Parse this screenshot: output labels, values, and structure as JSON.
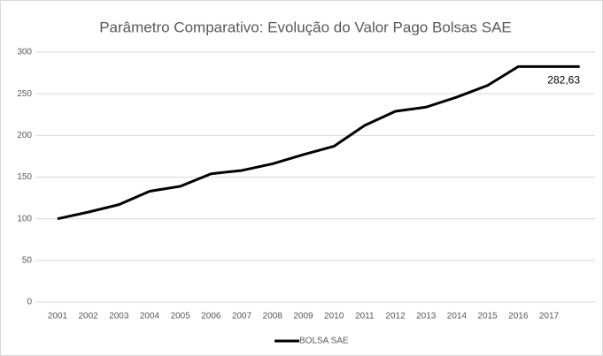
{
  "chart_data": {
    "type": "line",
    "title": "Parâmetro Comparativo: Evolução do Valor Pago Bolsas SAE",
    "categories": [
      "2001",
      "2002",
      "2003",
      "2004",
      "2005",
      "2006",
      "2007",
      "2008",
      "2009",
      "2010",
      "2011",
      "2012",
      "2013",
      "2014",
      "2015",
      "2016",
      "2017",
      null
    ],
    "series": [
      {
        "name": "BOLSA SAE",
        "color": "#000000",
        "values": [
          100,
          108,
          117,
          133,
          139,
          154,
          158,
          166,
          177,
          187,
          212,
          229,
          234,
          246,
          260,
          282.63,
          282.63,
          282.63
        ],
        "value_labels": [
          null,
          null,
          null,
          null,
          null,
          null,
          null,
          null,
          null,
          null,
          null,
          null,
          null,
          null,
          null,
          null,
          null,
          "282,63"
        ]
      }
    ],
    "ylim": [
      0,
      300
    ],
    "yticks": [
      0,
      50,
      100,
      150,
      200,
      250,
      300
    ],
    "grid": true,
    "legend": "bottom"
  }
}
